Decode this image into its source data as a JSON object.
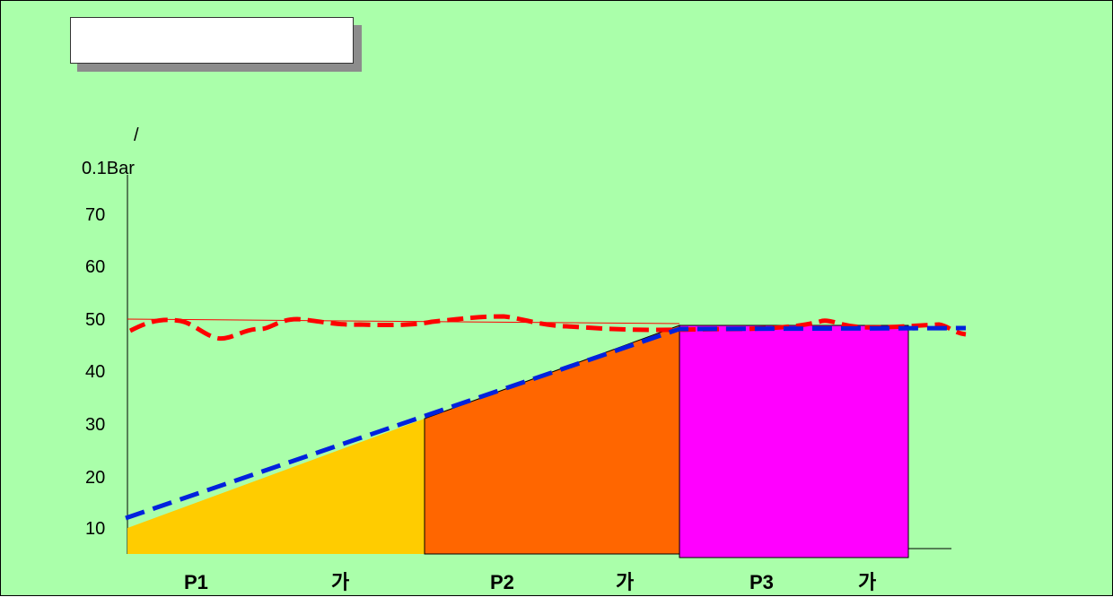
{
  "title_box": {
    "text": ""
  },
  "axis": {
    "unit_slash": "/",
    "unit": "0.1Bar",
    "ticks": [
      "70",
      "60",
      "50",
      "40",
      "30",
      "20",
      "10"
    ]
  },
  "phases": [
    {
      "label": "P1",
      "suffix": "가",
      "color": "#ffcc00"
    },
    {
      "label": "P2",
      "suffix": "가",
      "color": "#ff6600"
    },
    {
      "label": "P3",
      "suffix": "가",
      "color": "#ff00ff"
    }
  ],
  "lines": {
    "measured": {
      "color": "#ff0000",
      "style": "dashed"
    },
    "target": {
      "color": "#0022dd",
      "style": "dashed"
    },
    "reference": {
      "color": "#ff0000",
      "style": "thin"
    }
  }
}
